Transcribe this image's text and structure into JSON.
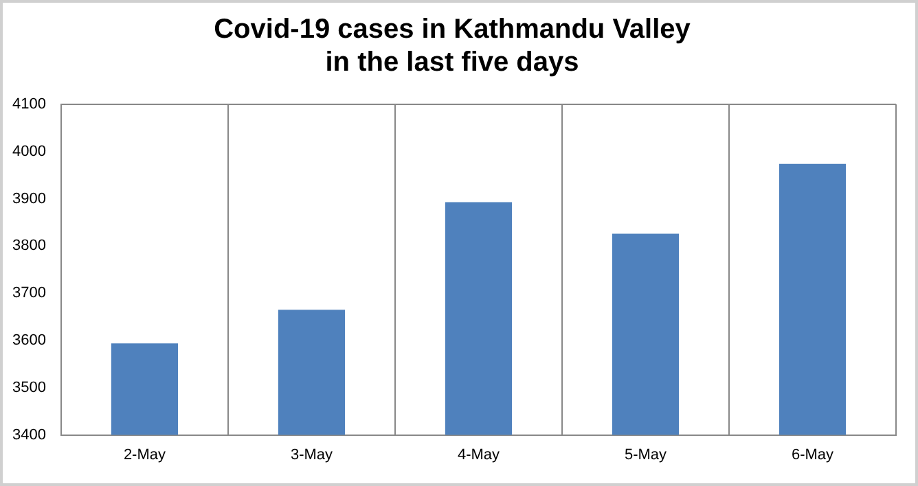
{
  "chart_data": {
    "type": "bar",
    "title": "Covid-19 cases in Kathmandu Valley\nin the last five days",
    "categories": [
      "2-May",
      "3-May",
      "4-May",
      "5-May",
      "6-May"
    ],
    "values": [
      3594,
      3665,
      3893,
      3826,
      3974
    ],
    "color": "#4f81bd",
    "ylim": [
      3400,
      4100
    ],
    "yticks": [
      3400,
      3500,
      3600,
      3700,
      3800,
      3900,
      4000,
      4100
    ],
    "grid": "x",
    "legend": false
  }
}
